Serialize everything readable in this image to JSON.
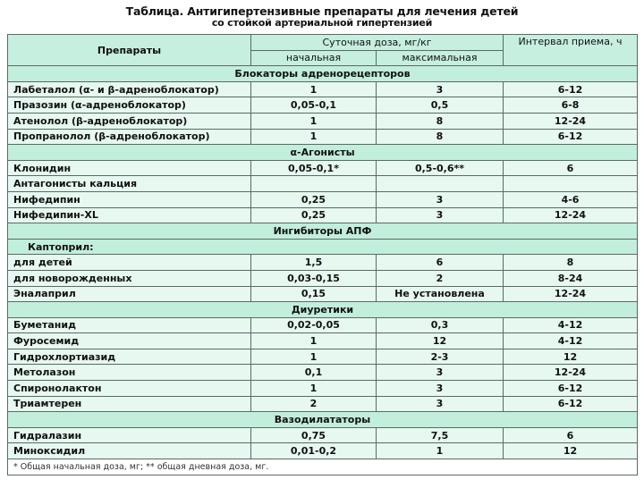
{
  "title": {
    "line1": "Таблица. Антигипертензивные препараты для лечения детей",
    "line2": "со стойкой артериальной гипертензией"
  },
  "header": {
    "drugs": "Препараты",
    "daily_dose": "Суточная доза, мг/кг",
    "initial": "начальная",
    "maximal": "максимальная",
    "interval": "Интервал приема, ч"
  },
  "colors": {
    "header_bg": "#c6efe0",
    "row_bg": "#e6f8f0",
    "border": "#5a6a64"
  },
  "rows": [
    {
      "section": "Блокаторы адренорецепторов"
    },
    {
      "name": "Лабеталол (α- и β-адреноблокатор)",
      "initial": "1",
      "max": "3",
      "interval": "6-12"
    },
    {
      "name": "Празозин (α-адреноблокатор)",
      "initial": "0,05-0,1",
      "max": "0,5",
      "interval": "6-8"
    },
    {
      "name": "Атенолол (β-адреноблокатор)",
      "initial": "1",
      "max": "8",
      "interval": "12-24"
    },
    {
      "name": "Пропранолол (β-адреноблокатор)",
      "initial": "1",
      "max": "8",
      "interval": "6-12"
    },
    {
      "section": "α-Агонисты"
    },
    {
      "name": "Клонидин",
      "initial": "0,05-0,1*",
      "max": "0,5-0,6**",
      "interval": "6"
    },
    {
      "name": "Антагонисты кальция",
      "initial": "",
      "max": "",
      "interval": ""
    },
    {
      "name": "Нифедипин",
      "initial": "0,25",
      "max": "3",
      "interval": "4-6"
    },
    {
      "name": "Нифедипин-XL",
      "initial": "0,25",
      "max": "3",
      "interval": "12-24"
    },
    {
      "section": "Ингибиторы АПФ"
    },
    {
      "subsection": "Каптоприл:"
    },
    {
      "name": "для детей",
      "initial": "1,5",
      "max": "6",
      "interval": "8"
    },
    {
      "name": "для новорожденных",
      "initial": "0,03-0,15",
      "max": "2",
      "interval": "8-24"
    },
    {
      "name": "Эналаприл",
      "initial": "0,15",
      "max": "Не установлена",
      "interval": "12-24"
    },
    {
      "section": "Диуретики"
    },
    {
      "name": "Буметанид",
      "initial": "0,02-0,05",
      "max": "0,3",
      "interval": "4-12"
    },
    {
      "name": "Фуросемид",
      "initial": "1",
      "max": "12",
      "interval": "4-12"
    },
    {
      "name": "Гидрохлортиазид",
      "initial": "1",
      "max": "2-3",
      "interval": "12"
    },
    {
      "name": "Метолазон",
      "initial": "0,1",
      "max": "3",
      "interval": "12-24"
    },
    {
      "name": "Спиронолактон",
      "initial": "1",
      "max": "3",
      "interval": "6-12"
    },
    {
      "name": "Триамтерен",
      "initial": "2",
      "max": "3",
      "interval": "6-12"
    },
    {
      "section": "Вазодилататоры"
    },
    {
      "name": "Гидралазин",
      "initial": "0,75",
      "max": "7,5",
      "interval": "6"
    },
    {
      "name": "Миноксидил",
      "initial": "0,01-0,2",
      "max": "1",
      "interval": "12"
    }
  ],
  "footnote": "* Общая начальная доза, мг; ** общая дневная доза, мг."
}
